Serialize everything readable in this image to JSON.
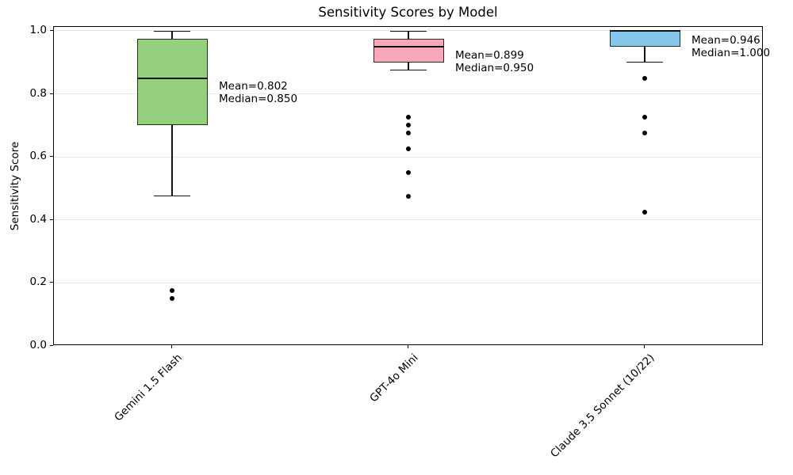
{
  "title": "Sensitivity Scores by Model",
  "chart_data": {
    "type": "box",
    "title": "Sensitivity Scores by Model",
    "xlabel": "",
    "ylabel": "Sensitivity Score",
    "ylim": [
      0,
      1.01
    ],
    "grid": "horizontal-light",
    "legend": "none",
    "yticks": [
      {
        "value": 0.0,
        "label": "0.0"
      },
      {
        "value": 0.2,
        "label": "0.2"
      },
      {
        "value": 0.4,
        "label": "0.4"
      },
      {
        "value": 0.6,
        "label": "0.6"
      },
      {
        "value": 0.8,
        "label": "0.8"
      },
      {
        "value": 1.0,
        "label": "1.0"
      }
    ],
    "categories": [
      "Gemini 1.5 Flash",
      "GPT-4o Mini",
      "Claude 3.5 Sonnet (10/22)"
    ],
    "series": [
      {
        "name": "Gemini 1.5 Flash",
        "box_color": "#94d07e",
        "whisker_low": 0.475,
        "q1": 0.7,
        "median": 0.85,
        "q3": 0.975,
        "whisker_high": 1.0,
        "outliers": [
          0.175,
          0.15
        ],
        "mean": 0.802,
        "annotation_lines": [
          "Mean=0.802",
          "Median=0.850"
        ]
      },
      {
        "name": "GPT-4o Mini",
        "box_color": "#f9a8b8",
        "whisker_low": 0.875,
        "q1": 0.9,
        "median": 0.95,
        "q3": 0.975,
        "whisker_high": 1.0,
        "outliers": [
          0.725,
          0.7,
          0.675,
          0.625,
          0.55,
          0.475
        ],
        "mean": 0.899,
        "annotation_lines": [
          "Mean=0.899",
          "Median=0.950"
        ]
      },
      {
        "name": "Claude 3.5 Sonnet (10/22)",
        "box_color": "#87c7ec",
        "whisker_low": 0.9,
        "q1": 0.95,
        "median": 1.0,
        "q3": 1.0,
        "whisker_high": 1.0,
        "outliers": [
          0.85,
          0.725,
          0.675,
          0.425
        ],
        "mean": 0.946,
        "annotation_lines": [
          "Mean=0.946",
          "Median=1.000"
        ]
      }
    ],
    "colors": {
      "grid": "#e8e8e8",
      "box_edge": "#2a2a2a",
      "median": "#111111",
      "outlier": "#000000",
      "text": "#000000"
    }
  }
}
